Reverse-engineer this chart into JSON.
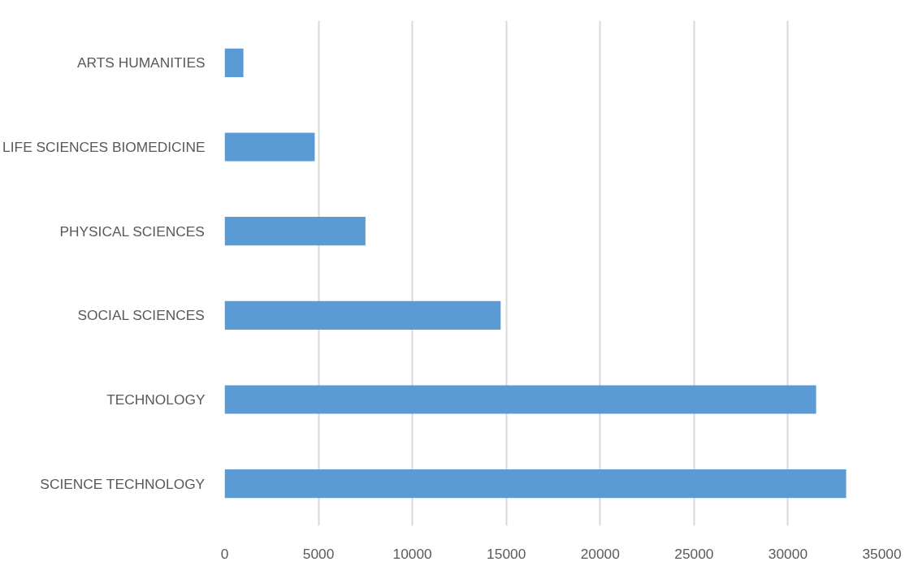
{
  "chart_data": {
    "type": "bar",
    "orientation": "horizontal",
    "categories": [
      "ARTS HUMANITIES",
      "LIFE SCIENCES BIOMEDICINE",
      "PHYSICAL SCIENCES",
      "SOCIAL SCIENCES",
      "TECHNOLOGY",
      "SCIENCE TECHNOLOGY"
    ],
    "values": [
      1000,
      4800,
      7500,
      14700,
      31500,
      33100
    ],
    "color": "#5b9bd5",
    "xlim": [
      0,
      35000
    ],
    "xticks": [
      0,
      5000,
      10000,
      15000,
      20000,
      25000,
      30000,
      35000
    ],
    "grid": "x"
  }
}
